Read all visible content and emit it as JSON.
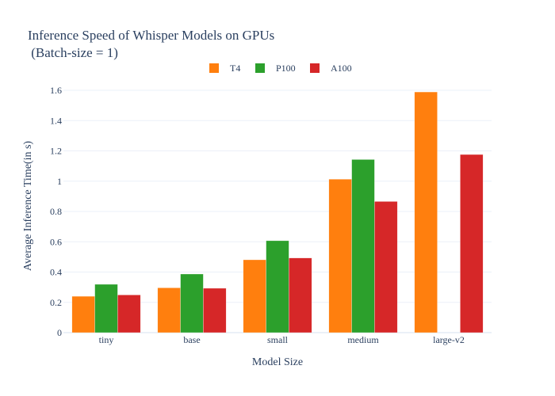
{
  "chart_data": {
    "type": "bar",
    "title_line1": "Inference Speed of Whisper Models on GPUs",
    "title_line2": " (Batch-size = 1)",
    "xlabel": "Model Size",
    "ylabel": "Average Inference Time(in s)",
    "categories": [
      "tiny",
      "base",
      "small",
      "medium",
      "large-v2"
    ],
    "series": [
      {
        "name": "T4",
        "color": "#ff7f0e",
        "values": [
          0.24,
          0.296,
          0.481,
          1.013,
          1.589
        ]
      },
      {
        "name": "P100",
        "color": "#2ca02c",
        "values": [
          0.319,
          0.387,
          0.607,
          1.143,
          null
        ]
      },
      {
        "name": "A100",
        "color": "#d62728",
        "values": [
          0.249,
          0.293,
          0.493,
          0.866,
          1.176
        ]
      }
    ],
    "ylim": [
      0,
      1.6
    ],
    "yticks": [
      0,
      0.2,
      0.4,
      0.6,
      0.8,
      1,
      1.2,
      1.4,
      1.6
    ],
    "ytick_labels": [
      "0",
      "0.2",
      "0.4",
      "0.6",
      "0.8",
      "1",
      "1.2",
      "1.4",
      "1.6"
    ],
    "grid": true,
    "legend_position": "top-center"
  }
}
